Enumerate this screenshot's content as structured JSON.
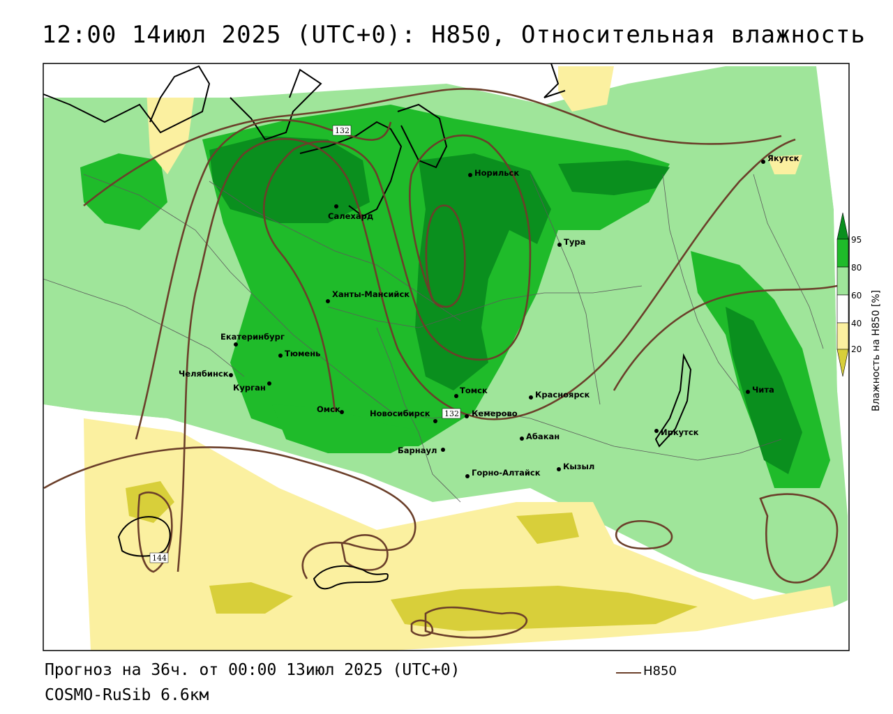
{
  "title": "12:00 14июл 2025 (UTC+0): H850, Относительная влажность",
  "footer": {
    "forecast": "Прогноз на 36ч. от 00:00 13июл 2025 (UTC+0)",
    "model": "COSMO-RuSib 6.6км"
  },
  "legend": {
    "line_label": "H850",
    "line_color": "#6b3f2a"
  },
  "colorbar": {
    "title": "Влажность на H850 [%]",
    "ticks": [
      "95",
      "80",
      "60",
      "40",
      "20"
    ],
    "colors": [
      "#0a8f1e",
      "#1fbb2a",
      "#9fe59a",
      "#ffffff",
      "#fbf0a0",
      "#d8cf3a"
    ]
  },
  "cities": [
    {
      "name": "Якутск"
    },
    {
      "name": "Норильск"
    },
    {
      "name": "Салехард"
    },
    {
      "name": "Тура"
    },
    {
      "name": "Ханты-Мансийск"
    },
    {
      "name": "Екатеринбург"
    },
    {
      "name": "Тюмень"
    },
    {
      "name": "Челябинск"
    },
    {
      "name": "Курган"
    },
    {
      "name": "Омск"
    },
    {
      "name": "Новосибирск"
    },
    {
      "name": "Томск"
    },
    {
      "name": "Кемерово"
    },
    {
      "name": "Красноярск"
    },
    {
      "name": "Абакан"
    },
    {
      "name": "Барнаул"
    },
    {
      "name": "Горно-Алтайск"
    },
    {
      "name": "Кызыл"
    },
    {
      "name": "Иркутск"
    },
    {
      "name": "Чита"
    }
  ],
  "contour_labels": [
    "132",
    "132",
    "144"
  ],
  "colors": {
    "dark_green": "#0a8f1e",
    "green": "#1fbb2a",
    "light_green": "#9fe59a",
    "pale_yellow": "#fbf0a0",
    "yellow": "#d8cf3a",
    "contour": "#6b3f2a"
  }
}
